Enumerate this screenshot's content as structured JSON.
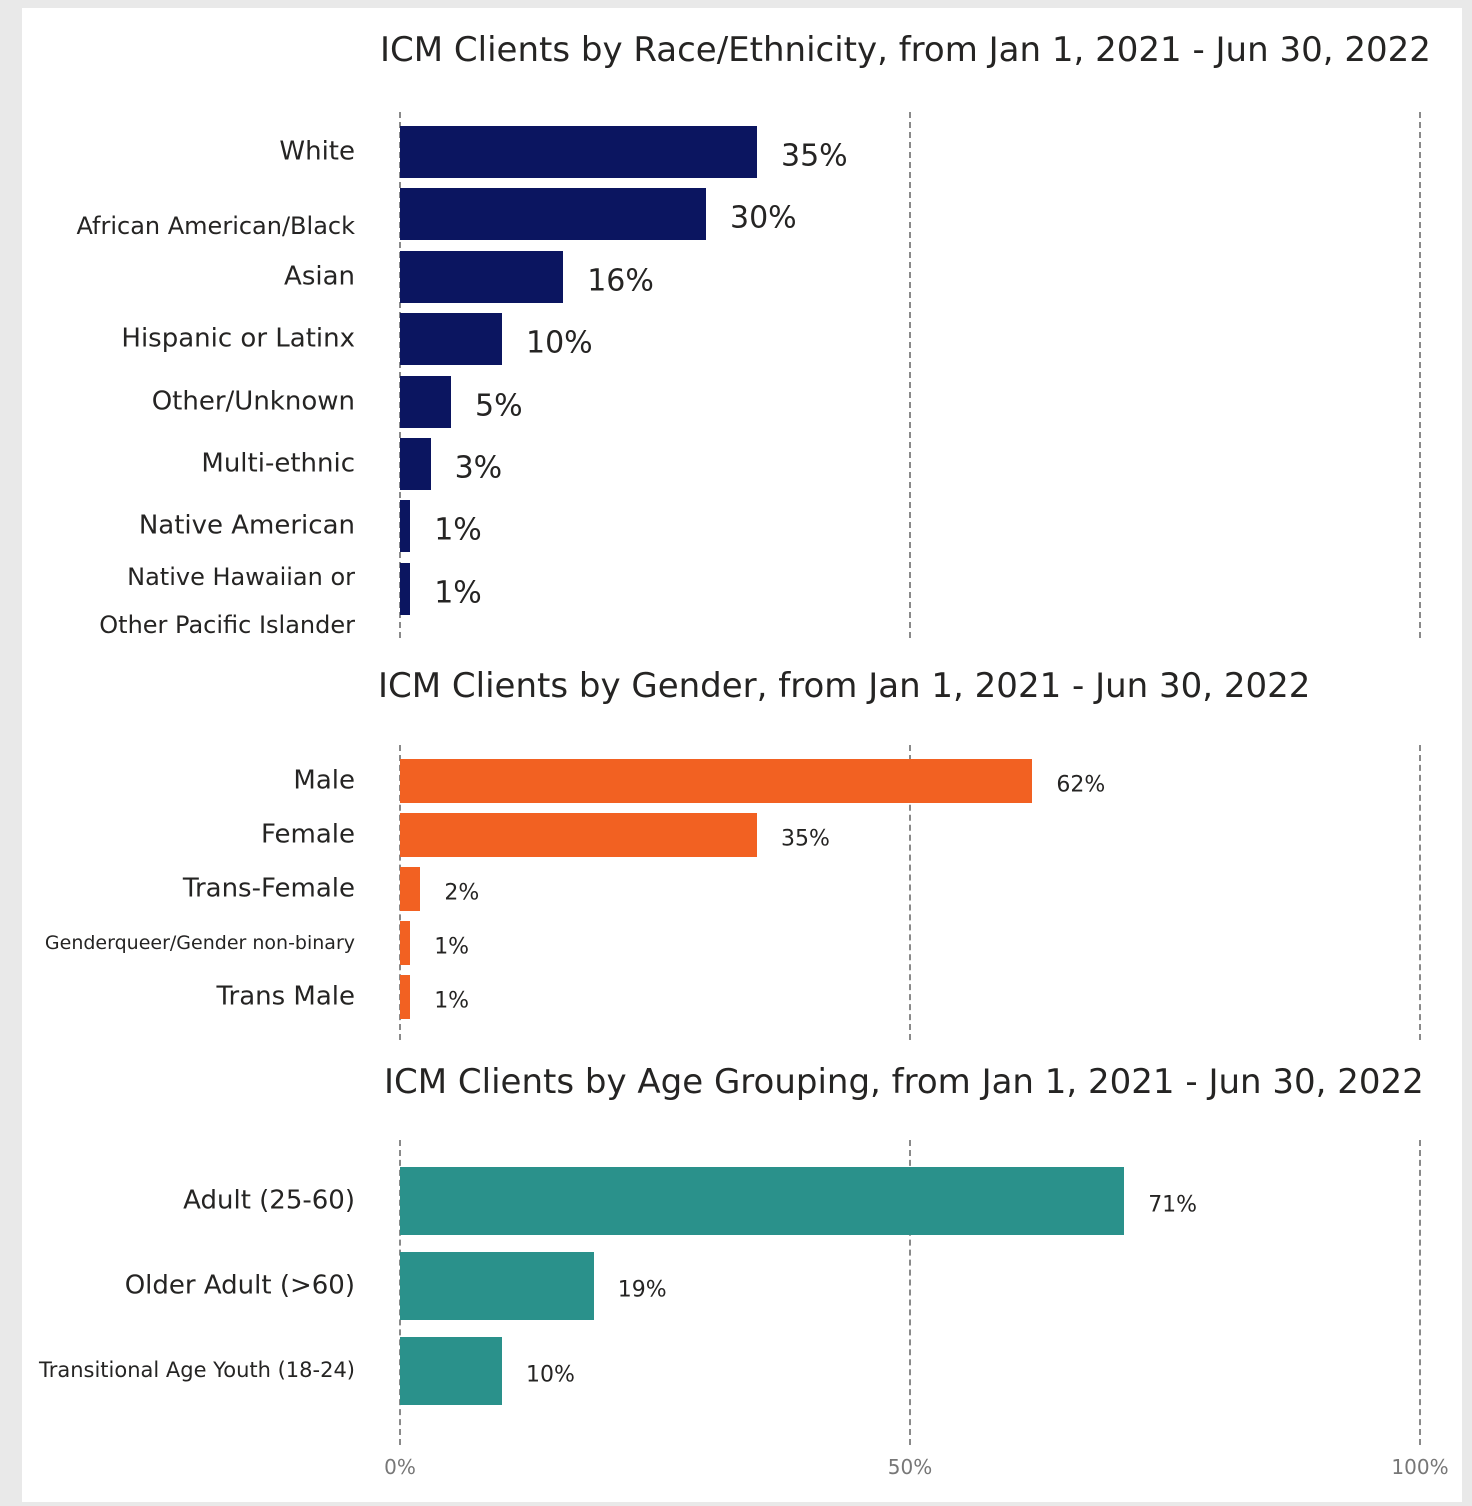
{
  "chart_data": [
    {
      "type": "bar",
      "orientation": "horizontal",
      "title": "ICM Clients by Race/Ethnicity, from Jan 1, 2021 - Jun 30, 2022",
      "categories": [
        "White",
        "African American/Black",
        "Asian",
        "Hispanic or Latinx",
        "Other/Unknown",
        "Multi-ethnic",
        "Native American",
        "Native Hawaiian or Other Pacific Islander"
      ],
      "values": [
        35,
        30,
        16,
        10,
        5,
        3,
        1,
        1
      ],
      "value_labels": [
        "35%",
        "30%",
        "16%",
        "10%",
        "5%",
        "3%",
        "1%",
        "1%"
      ],
      "color": "#0b1560",
      "xlim": [
        0,
        100
      ],
      "xticks": [
        0,
        50,
        100
      ],
      "grid": true
    },
    {
      "type": "bar",
      "orientation": "horizontal",
      "title": "ICM Clients by Gender, from Jan 1, 2021 - Jun 30, 2022",
      "categories": [
        "Male",
        "Female",
        "Trans-Female",
        "Genderqueer/Gender non-binary",
        "Trans Male"
      ],
      "values": [
        62,
        35,
        2,
        1,
        1
      ],
      "value_labels": [
        "62%",
        "35%",
        "2%",
        "1%",
        "1%"
      ],
      "color": "#f26122",
      "xlim": [
        0,
        100
      ],
      "xticks": [
        0,
        50,
        100
      ],
      "grid": true
    },
    {
      "type": "bar",
      "orientation": "horizontal",
      "title": "ICM Clients by Age Grouping, from Jan 1, 2021 - Jun 30, 2022",
      "categories": [
        "Adult (25-60)",
        "Older Adult (>60)",
        "Transitional Age Youth (18-24)"
      ],
      "values": [
        71,
        19,
        10
      ],
      "value_labels": [
        "71%",
        "19%",
        "10%"
      ],
      "color": "#2a918b",
      "xlim": [
        0,
        100
      ],
      "xticks": [
        {
          "value": 0,
          "label": "0%"
        },
        {
          "value": 50,
          "label": "50%"
        },
        {
          "value": 100,
          "label": "100%"
        }
      ],
      "grid": true
    }
  ]
}
